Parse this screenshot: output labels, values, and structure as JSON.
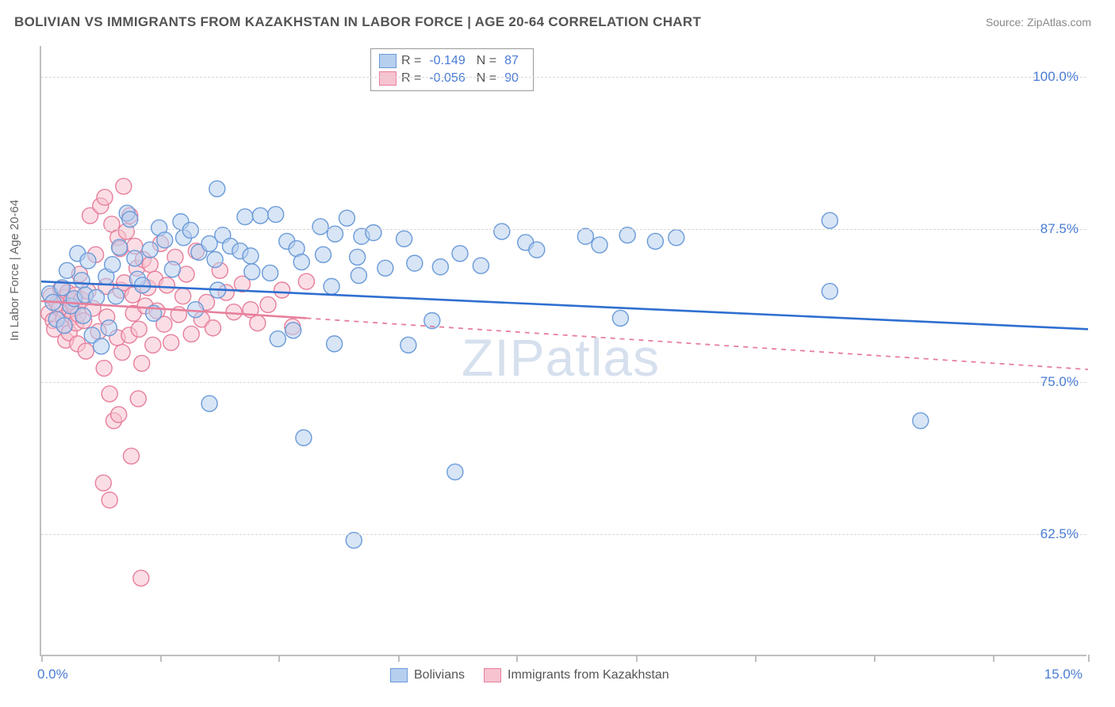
{
  "chart": {
    "type": "scatter",
    "title": "BOLIVIAN VS IMMIGRANTS FROM KAZAKHSTAN IN LABOR FORCE | AGE 20-64 CORRELATION CHART",
    "source": "Source: ZipAtlas.com",
    "watermark": "ZIPatlas",
    "ylabel": "In Labor Force | Age 20-64",
    "background_color": "#ffffff",
    "grid_color": "#d8d8d8",
    "axis_color": "#bfbfbf",
    "tick_label_color": "#4a7cd4",
    "title_color": "#545454",
    "title_fontsize": 17,
    "label_fontsize": 15,
    "tick_fontsize": 17,
    "xlim": [
      0.0,
      15.0
    ],
    "ylim": [
      52.5,
      102.5
    ],
    "x_ticks": [
      0.0,
      1.7,
      3.4,
      5.11,
      6.81,
      8.52,
      10.23,
      11.93,
      13.64,
      15.0
    ],
    "x_tick_labels": {
      "0": "0.0%",
      "15": "15.0%"
    },
    "y_ticks": [
      62.5,
      75.0,
      87.5,
      100.0
    ],
    "y_tick_labels": [
      "62.5%",
      "75.0%",
      "87.5%",
      "100.0%"
    ],
    "marker_radius": 10,
    "marker_stroke_width": 1.4,
    "trend_line_width": 2.6,
    "series": [
      {
        "name": "Bolivians",
        "fill": "#b6cfef",
        "stroke": "#6a9ad8",
        "fill_opacity": 0.55,
        "trend_color": "#2f6fd0",
        "trend_dash": "none",
        "R": "-0.149",
        "N": "87",
        "trend_x": [
          0.0,
          15.0
        ],
        "trend_y": [
          83.2,
          79.3
        ],
        "points": [
          [
            0.12,
            82.2
          ],
          [
            0.17,
            81.5
          ],
          [
            0.22,
            80.1
          ],
          [
            0.3,
            82.7
          ],
          [
            0.33,
            79.6
          ],
          [
            0.37,
            84.1
          ],
          [
            0.42,
            81.2
          ],
          [
            0.47,
            81.8
          ],
          [
            0.52,
            85.5
          ],
          [
            0.58,
            83.3
          ],
          [
            0.6,
            80.4
          ],
          [
            0.63,
            82.1
          ],
          [
            0.67,
            84.9
          ],
          [
            0.73,
            78.8
          ],
          [
            0.79,
            81.9
          ],
          [
            0.86,
            77.9
          ],
          [
            0.93,
            83.6
          ],
          [
            0.97,
            79.4
          ],
          [
            1.02,
            84.6
          ],
          [
            1.07,
            82.0
          ],
          [
            1.12,
            86.0
          ],
          [
            1.23,
            88.8
          ],
          [
            1.27,
            88.3
          ],
          [
            1.34,
            85.1
          ],
          [
            1.38,
            83.4
          ],
          [
            1.45,
            82.9
          ],
          [
            1.56,
            85.8
          ],
          [
            1.61,
            80.6
          ],
          [
            1.69,
            87.6
          ],
          [
            1.77,
            86.6
          ],
          [
            1.88,
            84.2
          ],
          [
            2.0,
            88.1
          ],
          [
            2.04,
            86.8
          ],
          [
            2.14,
            87.4
          ],
          [
            2.21,
            80.9
          ],
          [
            2.26,
            85.6
          ],
          [
            2.41,
            86.3
          ],
          [
            2.41,
            73.2
          ],
          [
            2.49,
            85.0
          ],
          [
            2.52,
            90.8
          ],
          [
            2.53,
            82.5
          ],
          [
            2.6,
            87.0
          ],
          [
            2.71,
            86.1
          ],
          [
            2.85,
            85.7
          ],
          [
            2.92,
            88.5
          ],
          [
            3.0,
            85.3
          ],
          [
            3.02,
            84.0
          ],
          [
            3.14,
            88.6
          ],
          [
            3.28,
            83.9
          ],
          [
            3.36,
            88.7
          ],
          [
            3.39,
            78.5
          ],
          [
            3.52,
            86.5
          ],
          [
            3.61,
            79.2
          ],
          [
            3.66,
            85.9
          ],
          [
            3.73,
            84.8
          ],
          [
            3.76,
            70.4
          ],
          [
            4.0,
            87.7
          ],
          [
            4.04,
            85.4
          ],
          [
            4.16,
            82.8
          ],
          [
            4.21,
            87.1
          ],
          [
            4.2,
            78.1
          ],
          [
            4.38,
            88.4
          ],
          [
            4.48,
            62.0
          ],
          [
            4.53,
            85.2
          ],
          [
            4.55,
            83.7
          ],
          [
            4.59,
            86.9
          ],
          [
            4.76,
            87.2
          ],
          [
            4.93,
            84.3
          ],
          [
            5.2,
            86.7
          ],
          [
            5.26,
            78.0
          ],
          [
            5.35,
            84.7
          ],
          [
            5.6,
            80.0
          ],
          [
            5.72,
            84.4
          ],
          [
            5.93,
            67.6
          ],
          [
            6.0,
            85.5
          ],
          [
            6.3,
            84.5
          ],
          [
            6.6,
            87.3
          ],
          [
            6.94,
            86.4
          ],
          [
            7.1,
            85.8
          ],
          [
            7.8,
            86.9
          ],
          [
            8.0,
            86.2
          ],
          [
            8.3,
            80.2
          ],
          [
            8.4,
            87.0
          ],
          [
            8.8,
            86.5
          ],
          [
            9.1,
            86.8
          ],
          [
            11.3,
            88.2
          ],
          [
            11.3,
            82.4
          ],
          [
            12.6,
            71.8
          ]
        ]
      },
      {
        "name": "Immigrants from Kazakhstan",
        "fill": "#f7c3d0",
        "stroke": "#e77f9b",
        "fill_opacity": 0.55,
        "trend_color": "#e77f9b",
        "trend_dash": "6 6",
        "R": "-0.056",
        "N": "90",
        "trend_x_solid": [
          0.0,
          3.8
        ],
        "trend_y_solid": [
          81.6,
          80.2
        ],
        "trend_x_dash": [
          3.8,
          15.0
        ],
        "trend_y_dash": [
          80.2,
          76.0
        ],
        "points": [
          [
            0.11,
            80.6
          ],
          [
            0.14,
            82.0
          ],
          [
            0.17,
            80.0
          ],
          [
            0.19,
            79.3
          ],
          [
            0.23,
            81.4
          ],
          [
            0.26,
            81.0
          ],
          [
            0.28,
            82.6
          ],
          [
            0.32,
            80.2
          ],
          [
            0.34,
            79.6
          ],
          [
            0.34,
            81.9
          ],
          [
            0.35,
            78.4
          ],
          [
            0.38,
            82.3
          ],
          [
            0.4,
            79.0
          ],
          [
            0.41,
            80.9
          ],
          [
            0.43,
            81.6
          ],
          [
            0.45,
            80.3
          ],
          [
            0.47,
            81.2
          ],
          [
            0.49,
            82.1
          ],
          [
            0.5,
            79.8
          ],
          [
            0.52,
            78.1
          ],
          [
            0.53,
            80.5
          ],
          [
            0.55,
            83.8
          ],
          [
            0.58,
            81.7
          ],
          [
            0.61,
            80.0
          ],
          [
            0.64,
            77.5
          ],
          [
            0.67,
            82.4
          ],
          [
            0.7,
            88.6
          ],
          [
            0.74,
            81.0
          ],
          [
            0.78,
            85.4
          ],
          [
            0.82,
            79.1
          ],
          [
            0.85,
            89.4
          ],
          [
            0.89,
            66.7
          ],
          [
            0.9,
            76.1
          ],
          [
            0.91,
            90.1
          ],
          [
            0.93,
            82.8
          ],
          [
            0.94,
            80.3
          ],
          [
            0.98,
            74.0
          ],
          [
            0.98,
            65.3
          ],
          [
            1.01,
            87.9
          ],
          [
            1.04,
            71.8
          ],
          [
            1.09,
            78.6
          ],
          [
            1.1,
            86.8
          ],
          [
            1.11,
            72.3
          ],
          [
            1.13,
            85.9
          ],
          [
            1.14,
            82.5
          ],
          [
            1.16,
            77.4
          ],
          [
            1.18,
            91.0
          ],
          [
            1.19,
            83.1
          ],
          [
            1.22,
            87.3
          ],
          [
            1.26,
            78.8
          ],
          [
            1.27,
            88.6
          ],
          [
            1.29,
            68.9
          ],
          [
            1.31,
            82.1
          ],
          [
            1.32,
            80.6
          ],
          [
            1.34,
            86.1
          ],
          [
            1.37,
            84.3
          ],
          [
            1.39,
            73.6
          ],
          [
            1.4,
            79.3
          ],
          [
            1.43,
            58.9
          ],
          [
            1.44,
            76.5
          ],
          [
            1.46,
            85.0
          ],
          [
            1.49,
            81.2
          ],
          [
            1.53,
            82.7
          ],
          [
            1.56,
            84.6
          ],
          [
            1.6,
            78.0
          ],
          [
            1.63,
            83.4
          ],
          [
            1.66,
            80.8
          ],
          [
            1.71,
            86.3
          ],
          [
            1.76,
            79.7
          ],
          [
            1.8,
            82.9
          ],
          [
            1.86,
            78.2
          ],
          [
            1.92,
            85.2
          ],
          [
            1.97,
            80.5
          ],
          [
            2.03,
            82.0
          ],
          [
            2.08,
            83.8
          ],
          [
            2.15,
            78.9
          ],
          [
            2.22,
            85.7
          ],
          [
            2.3,
            80.1
          ],
          [
            2.37,
            81.5
          ],
          [
            2.46,
            79.4
          ],
          [
            2.56,
            84.1
          ],
          [
            2.65,
            82.3
          ],
          [
            2.76,
            80.7
          ],
          [
            2.88,
            83.0
          ],
          [
            3.0,
            80.9
          ],
          [
            3.1,
            79.8
          ],
          [
            3.25,
            81.3
          ],
          [
            3.45,
            82.5
          ],
          [
            3.6,
            79.5
          ],
          [
            3.8,
            83.2
          ]
        ]
      }
    ],
    "legend_bottom": [
      {
        "label": "Bolivians",
        "fill": "#b6cfef",
        "stroke": "#6a9ad8"
      },
      {
        "label": "Immigrants from Kazakhstan",
        "fill": "#f7c3d0",
        "stroke": "#e77f9b"
      }
    ]
  }
}
